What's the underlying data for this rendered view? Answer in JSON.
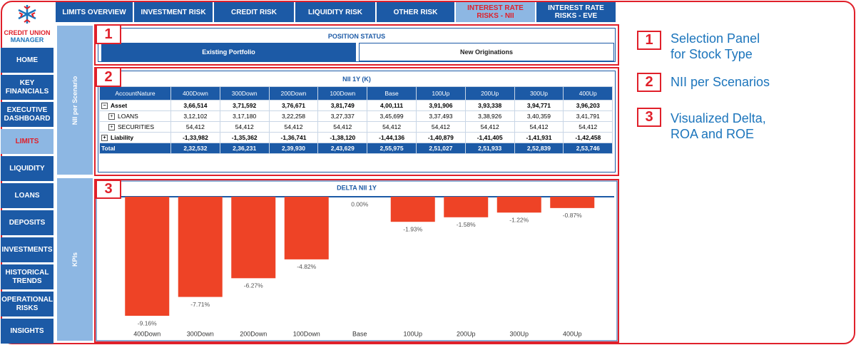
{
  "logo": {
    "line1": "CREDIT UNION",
    "line2": "MANAGER"
  },
  "nav": [
    "HOME",
    "KEY FINANCIALS",
    "EXECUTIVE DASHBOARD",
    "LIMITS",
    "LIQUIDITY",
    "LOANS",
    "DEPOSITS",
    "INVESTMENTS",
    "HISTORICAL TRENDS",
    "OPERATIONAL RISKS",
    "INSIGHTS"
  ],
  "tabs": [
    "LIMITS OVERVIEW",
    "INVESTMENT RISK",
    "CREDIT RISK",
    "LIQUIDITY RISK",
    "OTHER RISK",
    "INTEREST RATE RISKS - NII",
    "INTEREST RATE RISKS - EVE"
  ],
  "side_labels": [
    "NII per Scenario",
    "KPIs"
  ],
  "callouts": [
    {
      "number": "1",
      "lines": [
        "Selection Panel",
        "for Stock Type"
      ]
    },
    {
      "number": "2",
      "lines": [
        "NII per Scenarios"
      ]
    },
    {
      "number": "3",
      "lines": [
        "Visualized Delta,",
        "ROA and ROE"
      ]
    }
  ],
  "position_status": {
    "title": "POSITION STATUS",
    "options": [
      "Existing Portfolio",
      "New Originations"
    ]
  },
  "table": {
    "title": "NII 1Y (K)",
    "columns": [
      "AccountNature",
      "400Down",
      "300Down",
      "200Down",
      "100Down",
      "Base",
      "100Up",
      "200Up",
      "300Up",
      "400Up"
    ],
    "rows": [
      [
        "Asset",
        "3,66,514",
        "3,71,592",
        "3,76,671",
        "3,81,749",
        "4,00,111",
        "3,91,906",
        "3,93,338",
        "3,94,771",
        "3,96,203"
      ],
      [
        "LOANS",
        "3,12,102",
        "3,17,180",
        "3,22,258",
        "3,27,337",
        "3,45,699",
        "3,37,493",
        "3,38,926",
        "3,40,359",
        "3,41,791"
      ],
      [
        "SECURITIES",
        "54,412",
        "54,412",
        "54,412",
        "54,412",
        "54,412",
        "54,412",
        "54,412",
        "54,412",
        "54,412"
      ],
      [
        "Liability",
        "-1,33,982",
        "-1,35,362",
        "-1,36,741",
        "-1,38,120",
        "-1,44,136",
        "-1,40,879",
        "-1,41,405",
        "-1,41,931",
        "-1,42,458"
      ],
      [
        "Total",
        "2,32,532",
        "2,36,231",
        "2,39,930",
        "2,43,629",
        "2,55,975",
        "2,51,027",
        "2,51,933",
        "2,52,839",
        "2,53,746"
      ]
    ]
  },
  "chart_data": {
    "type": "bar",
    "title": "DELTA NII 1Y",
    "categories": [
      "400Down",
      "300Down",
      "200Down",
      "100Down",
      "Base",
      "100Up",
      "200Up",
      "300Up",
      "400Up"
    ],
    "values": [
      -9.16,
      -7.71,
      -6.27,
      -4.82,
      0.0,
      -1.93,
      -1.58,
      -1.22,
      -0.87
    ],
    "value_labels": [
      "-9.16%",
      "-7.71%",
      "-6.27%",
      "-4.82%",
      "0.00%",
      "-1.93%",
      "-1.58%",
      "-1.22%",
      "-0.87%"
    ],
    "color": "#ee4326"
  }
}
